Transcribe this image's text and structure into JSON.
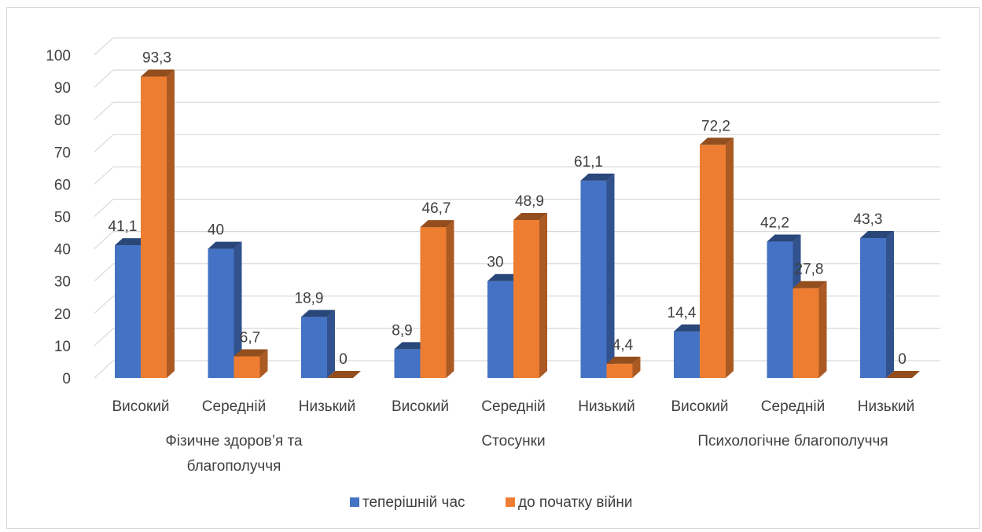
{
  "chart_data": {
    "type": "bar",
    "variant": "3d-clustered-column",
    "ylim": [
      0,
      100
    ],
    "y_ticks": [
      "0",
      "10",
      "20",
      "30",
      "40",
      "50",
      "60",
      "70",
      "80",
      "90",
      "100"
    ],
    "grid": true,
    "groups": [
      {
        "label_lines": [
          "Фізичне здоров’я та",
          "благополуччя"
        ],
        "categories": [
          "Високий",
          "Середній",
          "Низький"
        ]
      },
      {
        "label_lines": [
          "Стосунки"
        ],
        "categories": [
          "Високий",
          "Середній",
          "Низький"
        ]
      },
      {
        "label_lines": [
          "Психологічне благополуччя"
        ],
        "categories": [
          "Високий",
          "Середній",
          "Низький"
        ]
      }
    ],
    "categories": [
      "Високий",
      "Середній",
      "Низький",
      "Високий",
      "Середній",
      "Низький",
      "Високий",
      "Середній",
      "Низький"
    ],
    "series": [
      {
        "name": "теперішній час",
        "color": "#4472C4",
        "values": [
          41.1,
          40,
          18.9,
          8.9,
          30,
          61.1,
          14.4,
          42.2,
          43.3
        ],
        "labels": [
          "41,1",
          "40",
          "18,9",
          "8,9",
          "30",
          "61,1",
          "14,4",
          "42,2",
          "43,3"
        ]
      },
      {
        "name": "до початку війни",
        "color": "#ED7D31",
        "values": [
          93.3,
          6.7,
          0,
          46.7,
          48.9,
          4.4,
          72.2,
          27.8,
          0
        ],
        "labels": [
          "93,3",
          "6,7",
          "0",
          "46,7",
          "48,9",
          "4,4",
          "72,2",
          "27,8",
          "0"
        ]
      }
    ],
    "legend_position": "bottom"
  }
}
